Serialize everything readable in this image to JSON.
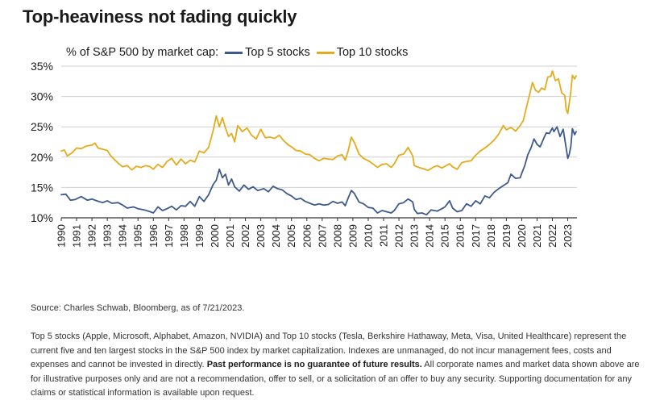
{
  "title": "Top-heaviness not fading quickly",
  "legend": {
    "prefix": "% of S&P 500 by market cap:",
    "top5_label": "Top 5 stocks",
    "top10_label": "Top 10 stocks"
  },
  "colors": {
    "top5": "#3d5a8c",
    "top10": "#e2ac1c",
    "grid": "#cfcfcf",
    "axis": "#333333"
  },
  "source": "Source: Charles Schwab, Bloomberg, as of 7/21/2023.",
  "disclaimer": {
    "part1": "Top 5 stocks (Apple, Microsoft, Alphabet, Amazon, NVIDIA) and Top 10 stocks (Tesla, Berkshire Hathaway, Meta, Visa, United Healthcare) represent the current five and ten largest stocks in the S&P 500 index by market capitalization. Indexes are unmanaged, do not incur management fees, costs and expenses and cannot be invested in directly. ",
    "bold": "Past performance is no guarantee of future results.",
    "part2": " All corporate names and market data shown above are for illustrative purposes only and are not a recommendation, offer to sell, or a solicitation of an offer to buy any security. Supporting documentation for any claims or statistical information is available upon request."
  },
  "chart_data": {
    "type": "line",
    "title": "Top-heaviness not fading quickly",
    "ylabel": "% of S&P 500 by market cap",
    "xlabel": "",
    "xlim": [
      1990.0,
      2023.6
    ],
    "ylim": [
      10,
      35
    ],
    "yticks": [
      10,
      15,
      20,
      25,
      30,
      35
    ],
    "ytick_labels": [
      "10%",
      "15%",
      "20%",
      "25%",
      "30%",
      "35%"
    ],
    "xticks": [
      1990,
      1991,
      1992,
      1993,
      1994,
      1995,
      1996,
      1997,
      1998,
      1999,
      2000,
      2001,
      2002,
      2003,
      2004,
      2005,
      2006,
      2007,
      2008,
      2009,
      2010,
      2011,
      2012,
      2013,
      2014,
      2015,
      2016,
      2017,
      2018,
      2019,
      2020,
      2021,
      2022,
      2023
    ],
    "xtick_labels": [
      "1990",
      "1991",
      "1992",
      "1993",
      "1994",
      "1995",
      "1996",
      "1997",
      "1998",
      "1999",
      "2000",
      "2001",
      "2002",
      "2003",
      "2004",
      "2005",
      "2006",
      "2007",
      "2008",
      "2009",
      "2010",
      "2011",
      "2012",
      "2013",
      "2014",
      "2015",
      "2016",
      "2017",
      "2018",
      "2019",
      "2020",
      "2021",
      "2022",
      "2023"
    ],
    "grid": "horizontal",
    "legend_position": "top",
    "series": [
      {
        "name": "Top 5 stocks",
        "color": "#3d5a8c",
        "points": [
          [
            1990.0,
            13.8
          ],
          [
            1990.3,
            13.9
          ],
          [
            1990.6,
            12.9
          ],
          [
            1990.9,
            13.0
          ],
          [
            1991.3,
            13.5
          ],
          [
            1991.7,
            12.9
          ],
          [
            1992.0,
            13.1
          ],
          [
            1992.3,
            12.8
          ],
          [
            1992.7,
            12.5
          ],
          [
            1993.0,
            12.8
          ],
          [
            1993.3,
            12.4
          ],
          [
            1993.7,
            12.5
          ],
          [
            1994.0,
            12.1
          ],
          [
            1994.3,
            11.6
          ],
          [
            1994.7,
            11.8
          ],
          [
            1995.0,
            11.5
          ],
          [
            1995.4,
            11.3
          ],
          [
            1995.8,
            11.0
          ],
          [
            1996.0,
            10.8
          ],
          [
            1996.3,
            11.8
          ],
          [
            1996.6,
            11.2
          ],
          [
            1996.9,
            11.5
          ],
          [
            1997.2,
            11.9
          ],
          [
            1997.5,
            11.3
          ],
          [
            1997.8,
            12.0
          ],
          [
            1998.1,
            11.9
          ],
          [
            1998.4,
            12.7
          ],
          [
            1998.7,
            11.9
          ],
          [
            1999.0,
            13.5
          ],
          [
            1999.3,
            12.7
          ],
          [
            1999.6,
            13.8
          ],
          [
            1999.9,
            15.5
          ],
          [
            2000.1,
            16.2
          ],
          [
            2000.3,
            18.0
          ],
          [
            2000.5,
            16.6
          ],
          [
            2000.7,
            17.2
          ],
          [
            2000.9,
            15.4
          ],
          [
            2001.1,
            16.4
          ],
          [
            2001.3,
            15.1
          ],
          [
            2001.6,
            14.4
          ],
          [
            2001.9,
            15.4
          ],
          [
            2002.2,
            14.7
          ],
          [
            2002.5,
            15.1
          ],
          [
            2002.8,
            14.5
          ],
          [
            2003.2,
            14.8
          ],
          [
            2003.5,
            14.3
          ],
          [
            2003.8,
            15.2
          ],
          [
            2004.1,
            14.8
          ],
          [
            2004.4,
            14.6
          ],
          [
            2004.7,
            14.0
          ],
          [
            2005.0,
            13.6
          ],
          [
            2005.3,
            13.0
          ],
          [
            2005.6,
            13.2
          ],
          [
            2005.9,
            12.7
          ],
          [
            2006.2,
            12.4
          ],
          [
            2006.5,
            12.1
          ],
          [
            2006.8,
            12.3
          ],
          [
            2007.1,
            12.1
          ],
          [
            2007.4,
            12.2
          ],
          [
            2007.7,
            12.7
          ],
          [
            2008.0,
            12.4
          ],
          [
            2008.3,
            12.6
          ],
          [
            2008.5,
            12.0
          ],
          [
            2008.7,
            13.3
          ],
          [
            2008.9,
            14.5
          ],
          [
            2009.1,
            14.0
          ],
          [
            2009.4,
            12.6
          ],
          [
            2009.7,
            12.3
          ],
          [
            2010.0,
            11.7
          ],
          [
            2010.3,
            11.6
          ],
          [
            2010.6,
            10.8
          ],
          [
            2010.9,
            11.2
          ],
          [
            2011.2,
            11.0
          ],
          [
            2011.5,
            10.8
          ],
          [
            2011.7,
            11.2
          ],
          [
            2012.0,
            12.3
          ],
          [
            2012.3,
            12.5
          ],
          [
            2012.6,
            13.1
          ],
          [
            2012.9,
            12.6
          ],
          [
            2013.0,
            11.4
          ],
          [
            2013.2,
            10.7
          ],
          [
            2013.5,
            10.8
          ],
          [
            2013.8,
            10.5
          ],
          [
            2014.1,
            11.3
          ],
          [
            2014.5,
            11.1
          ],
          [
            2014.8,
            11.5
          ],
          [
            2015.0,
            11.8
          ],
          [
            2015.3,
            12.8
          ],
          [
            2015.5,
            11.6
          ],
          [
            2015.8,
            11.0
          ],
          [
            2016.1,
            11.2
          ],
          [
            2016.4,
            12.3
          ],
          [
            2016.7,
            11.9
          ],
          [
            2017.0,
            12.8
          ],
          [
            2017.3,
            12.3
          ],
          [
            2017.6,
            13.6
          ],
          [
            2017.9,
            13.3
          ],
          [
            2018.2,
            14.2
          ],
          [
            2018.5,
            14.8
          ],
          [
            2018.8,
            15.3
          ],
          [
            2019.1,
            15.8
          ],
          [
            2019.3,
            17.2
          ],
          [
            2019.6,
            16.5
          ],
          [
            2019.9,
            16.6
          ],
          [
            2020.0,
            17.3
          ],
          [
            2020.2,
            18.6
          ],
          [
            2020.4,
            20.4
          ],
          [
            2020.6,
            21.5
          ],
          [
            2020.8,
            23.0
          ],
          [
            2021.0,
            22.1
          ],
          [
            2021.2,
            21.7
          ],
          [
            2021.4,
            22.9
          ],
          [
            2021.6,
            24.0
          ],
          [
            2021.8,
            23.9
          ],
          [
            2022.0,
            24.8
          ],
          [
            2022.1,
            24.2
          ],
          [
            2022.3,
            25.0
          ],
          [
            2022.5,
            23.4
          ],
          [
            2022.7,
            24.6
          ],
          [
            2022.9,
            21.4
          ],
          [
            2023.0,
            19.8
          ],
          [
            2023.1,
            20.5
          ],
          [
            2023.2,
            21.8
          ],
          [
            2023.3,
            24.7
          ],
          [
            2023.45,
            23.7
          ],
          [
            2023.55,
            24.2
          ]
        ]
      },
      {
        "name": "Top 10 stocks",
        "color": "#e2ac1c",
        "points": [
          [
            1990.0,
            21.0
          ],
          [
            1990.2,
            21.2
          ],
          [
            1990.4,
            20.2
          ],
          [
            1990.7,
            20.7
          ],
          [
            1991.0,
            21.5
          ],
          [
            1991.3,
            21.4
          ],
          [
            1991.6,
            21.8
          ],
          [
            1992.0,
            22.0
          ],
          [
            1992.2,
            22.3
          ],
          [
            1992.4,
            21.5
          ],
          [
            1992.7,
            21.3
          ],
          [
            1993.0,
            21.1
          ],
          [
            1993.2,
            20.3
          ],
          [
            1993.5,
            19.5
          ],
          [
            1993.8,
            18.8
          ],
          [
            1994.0,
            18.4
          ],
          [
            1994.3,
            18.6
          ],
          [
            1994.6,
            17.9
          ],
          [
            1994.9,
            18.5
          ],
          [
            1995.2,
            18.3
          ],
          [
            1995.5,
            18.6
          ],
          [
            1995.8,
            18.4
          ],
          [
            1996.0,
            18.0
          ],
          [
            1996.3,
            18.8
          ],
          [
            1996.6,
            18.3
          ],
          [
            1996.9,
            19.3
          ],
          [
            1997.2,
            19.8
          ],
          [
            1997.5,
            18.7
          ],
          [
            1997.8,
            19.7
          ],
          [
            1998.1,
            18.9
          ],
          [
            1998.4,
            19.5
          ],
          [
            1998.7,
            19.2
          ],
          [
            1999.0,
            21.0
          ],
          [
            1999.3,
            20.7
          ],
          [
            1999.6,
            21.6
          ],
          [
            1999.9,
            24.4
          ],
          [
            2000.1,
            26.8
          ],
          [
            2000.3,
            25.0
          ],
          [
            2000.5,
            26.5
          ],
          [
            2000.7,
            24.8
          ],
          [
            2000.9,
            23.4
          ],
          [
            2001.1,
            23.9
          ],
          [
            2001.3,
            22.5
          ],
          [
            2001.5,
            25.2
          ],
          [
            2001.8,
            24.2
          ],
          [
            2002.1,
            24.8
          ],
          [
            2002.4,
            23.6
          ],
          [
            2002.7,
            23.0
          ],
          [
            2003.0,
            24.6
          ],
          [
            2003.3,
            23.2
          ],
          [
            2003.6,
            23.3
          ],
          [
            2003.9,
            23.1
          ],
          [
            2004.2,
            23.6
          ],
          [
            2004.5,
            22.7
          ],
          [
            2004.8,
            22.0
          ],
          [
            2005.0,
            21.7
          ],
          [
            2005.3,
            21.1
          ],
          [
            2005.6,
            21.0
          ],
          [
            2005.9,
            20.5
          ],
          [
            2006.2,
            20.4
          ],
          [
            2006.5,
            19.8
          ],
          [
            2006.8,
            19.4
          ],
          [
            2007.1,
            19.8
          ],
          [
            2007.4,
            19.7
          ],
          [
            2007.7,
            19.6
          ],
          [
            2008.0,
            20.2
          ],
          [
            2008.3,
            20.4
          ],
          [
            2008.5,
            19.5
          ],
          [
            2008.7,
            21.1
          ],
          [
            2008.9,
            23.3
          ],
          [
            2009.1,
            22.4
          ],
          [
            2009.4,
            20.5
          ],
          [
            2009.7,
            19.8
          ],
          [
            2010.0,
            19.4
          ],
          [
            2010.3,
            18.9
          ],
          [
            2010.6,
            18.3
          ],
          [
            2010.9,
            18.8
          ],
          [
            2011.2,
            18.9
          ],
          [
            2011.5,
            18.3
          ],
          [
            2011.7,
            18.9
          ],
          [
            2012.0,
            20.3
          ],
          [
            2012.3,
            20.5
          ],
          [
            2012.6,
            21.6
          ],
          [
            2012.9,
            20.2
          ],
          [
            2013.0,
            18.6
          ],
          [
            2013.3,
            18.3
          ],
          [
            2013.6,
            18.1
          ],
          [
            2013.9,
            17.8
          ],
          [
            2014.2,
            18.3
          ],
          [
            2014.5,
            18.6
          ],
          [
            2014.8,
            18.2
          ],
          [
            2015.0,
            18.5
          ],
          [
            2015.3,
            18.9
          ],
          [
            2015.5,
            18.4
          ],
          [
            2015.8,
            18.0
          ],
          [
            2016.1,
            19.1
          ],
          [
            2016.4,
            19.3
          ],
          [
            2016.7,
            19.4
          ],
          [
            2017.0,
            20.3
          ],
          [
            2017.3,
            21.0
          ],
          [
            2017.6,
            21.5
          ],
          [
            2017.9,
            22.1
          ],
          [
            2018.2,
            22.8
          ],
          [
            2018.5,
            23.8
          ],
          [
            2018.8,
            25.2
          ],
          [
            2019.0,
            24.5
          ],
          [
            2019.3,
            24.9
          ],
          [
            2019.6,
            24.3
          ],
          [
            2019.9,
            25.2
          ],
          [
            2020.1,
            26.0
          ],
          [
            2020.3,
            28.1
          ],
          [
            2020.5,
            30.2
          ],
          [
            2020.7,
            32.3
          ],
          [
            2020.9,
            31.0
          ],
          [
            2021.1,
            30.7
          ],
          [
            2021.3,
            31.4
          ],
          [
            2021.5,
            31.1
          ],
          [
            2021.7,
            33.2
          ],
          [
            2021.9,
            33.3
          ],
          [
            2022.0,
            34.2
          ],
          [
            2022.2,
            32.6
          ],
          [
            2022.4,
            32.9
          ],
          [
            2022.6,
            30.6
          ],
          [
            2022.8,
            30.2
          ],
          [
            2022.9,
            27.8
          ],
          [
            2023.0,
            27.2
          ],
          [
            2023.2,
            30.8
          ],
          [
            2023.3,
            33.5
          ],
          [
            2023.45,
            32.9
          ],
          [
            2023.55,
            33.4
          ]
        ]
      }
    ]
  }
}
